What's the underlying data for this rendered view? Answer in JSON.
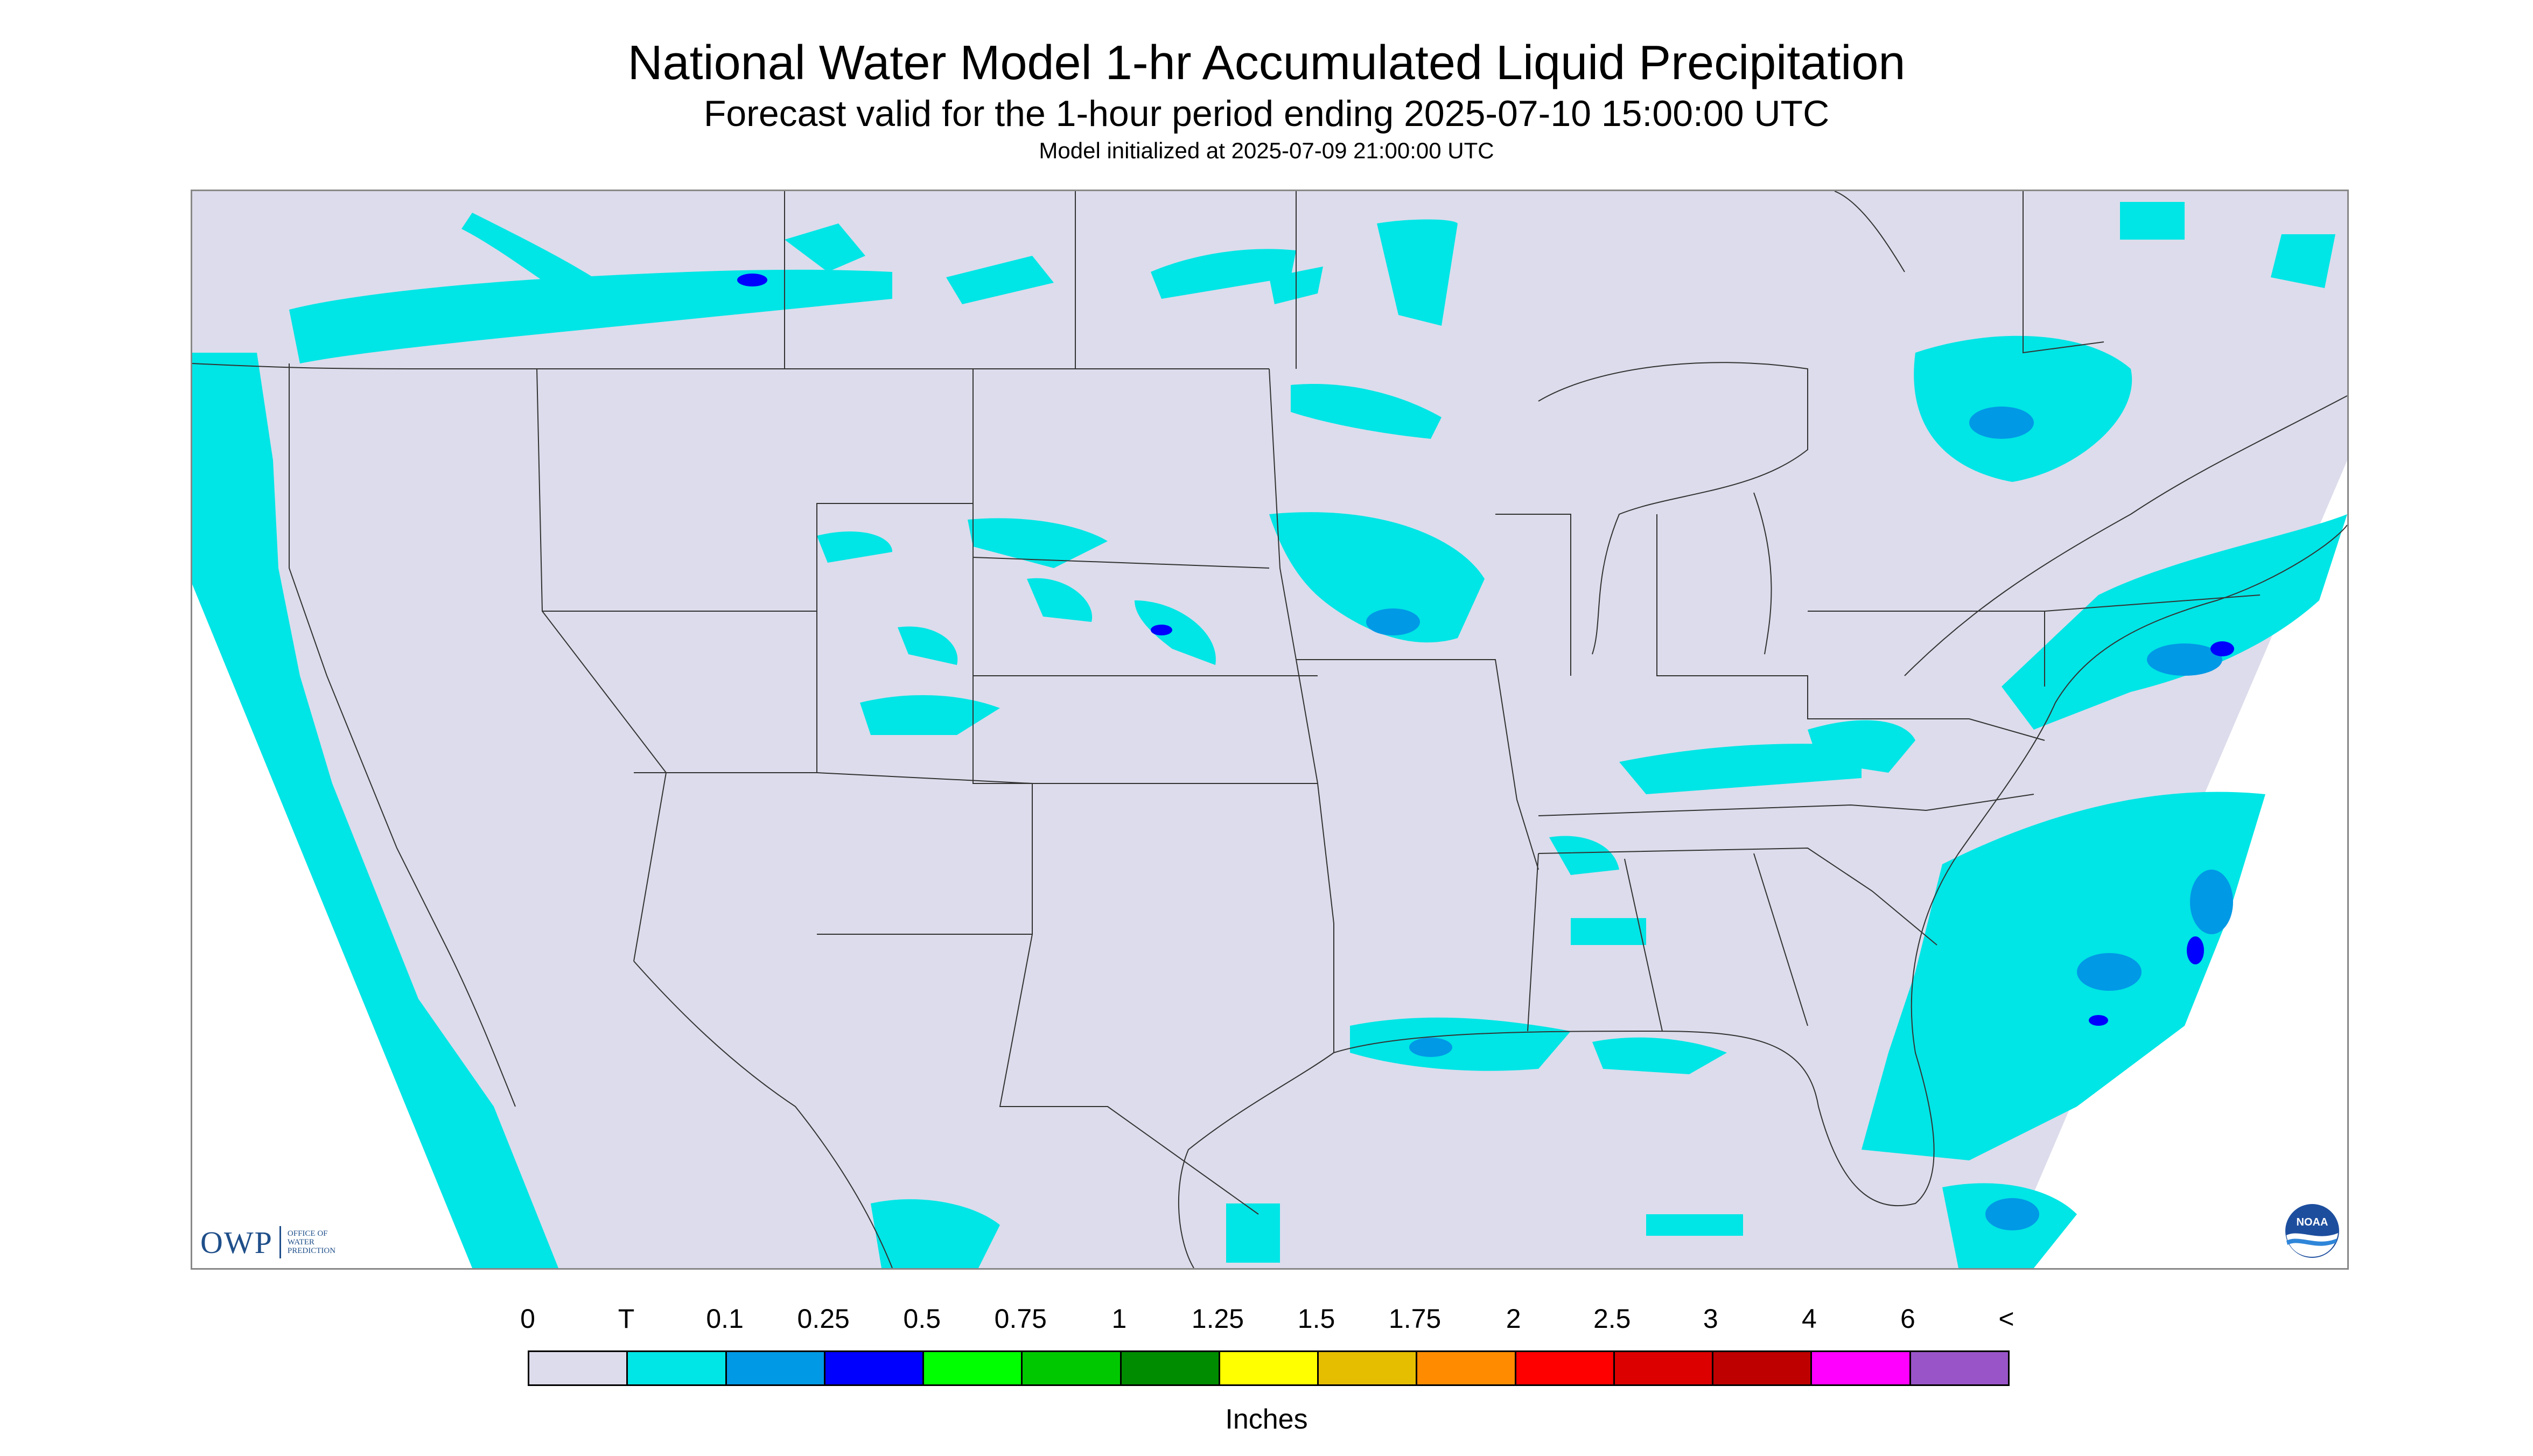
{
  "header": {
    "title": "National Water Model 1-hr Accumulated Liquid Precipitation",
    "subtitle": "Forecast valid for the 1-hour period ending 2025-07-10 15:00:00 UTC",
    "init_line": "Model initialized at 2025-07-09 21:00:00 UTC"
  },
  "map": {
    "background_color": "#dcdcec",
    "outside_domain_color": "#ffffff",
    "precip_light_color": "#00e5e5",
    "precip_moderate_color": "#0099e6",
    "precip_heavy_color": "#0000ff",
    "boundary_color": "#333333",
    "logos": {
      "owp_letters": "OWP",
      "owp_sub": [
        "OFFICE OF",
        "WATER",
        "PREDICTION"
      ],
      "noaa_text": "NOAA"
    }
  },
  "legend": {
    "labels": [
      "0",
      "T",
      "0.1",
      "0.25",
      "0.5",
      "0.75",
      "1",
      "1.25",
      "1.5",
      "1.75",
      "2",
      "2.5",
      "3",
      "4",
      "6",
      "<"
    ],
    "colors": [
      "#dcdcec",
      "#00e5e5",
      "#0099e6",
      "#0000ff",
      "#00ff00",
      "#00c800",
      "#008c00",
      "#ffff00",
      "#e6be00",
      "#ff8c00",
      "#ff0000",
      "#dc0000",
      "#be0000",
      "#ff00ff",
      "#9955c8"
    ],
    "units": "Inches"
  }
}
